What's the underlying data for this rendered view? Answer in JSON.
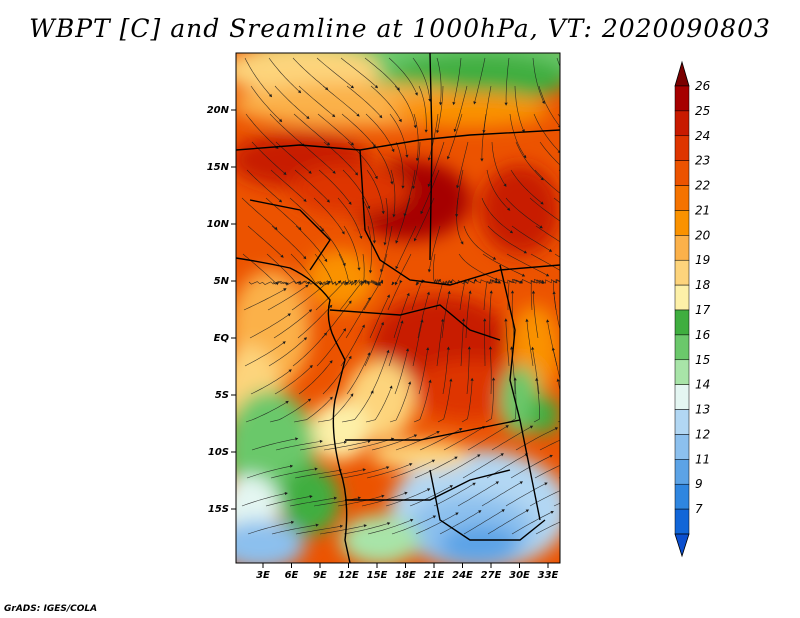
{
  "title": "WBPT [C] and Sreamline at 1000hPa, VT: 2020090803",
  "credit": "GrADS: IGES/COLA",
  "map": {
    "lat_labels": [
      "20N",
      "15N",
      "10N",
      "5N",
      "EQ",
      "5S",
      "10S",
      "15S"
    ],
    "lon_labels": [
      "3E",
      "6E",
      "9E",
      "12E",
      "15E",
      "18E",
      "21E",
      "24E",
      "27E",
      "30E",
      "33E"
    ],
    "field": "WBPT",
    "units": "C",
    "level": "1000hPa",
    "valid_time": "2020090803"
  },
  "colorbar": {
    "labels": [
      "26",
      "25",
      "24",
      "23",
      "22",
      "21",
      "20",
      "19",
      "18",
      "17",
      "16",
      "15",
      "14",
      "13",
      "12",
      "11",
      "9",
      "7"
    ],
    "colors": [
      "#a60000",
      "#c81a00",
      "#de3500",
      "#ec5300",
      "#f57300",
      "#fa9200",
      "#fbb14a",
      "#fdd47c",
      "#fdf0a8",
      "#3fae3f",
      "#6bc86b",
      "#a8e4a8",
      "#e4f6f2",
      "#b2d7f3",
      "#8cc0ee",
      "#5ca3e6",
      "#2f86e0",
      "#1166d8"
    ],
    "top_arrow_color": "#7a0000",
    "bottom_arrow_color": "#0b4fcf"
  }
}
